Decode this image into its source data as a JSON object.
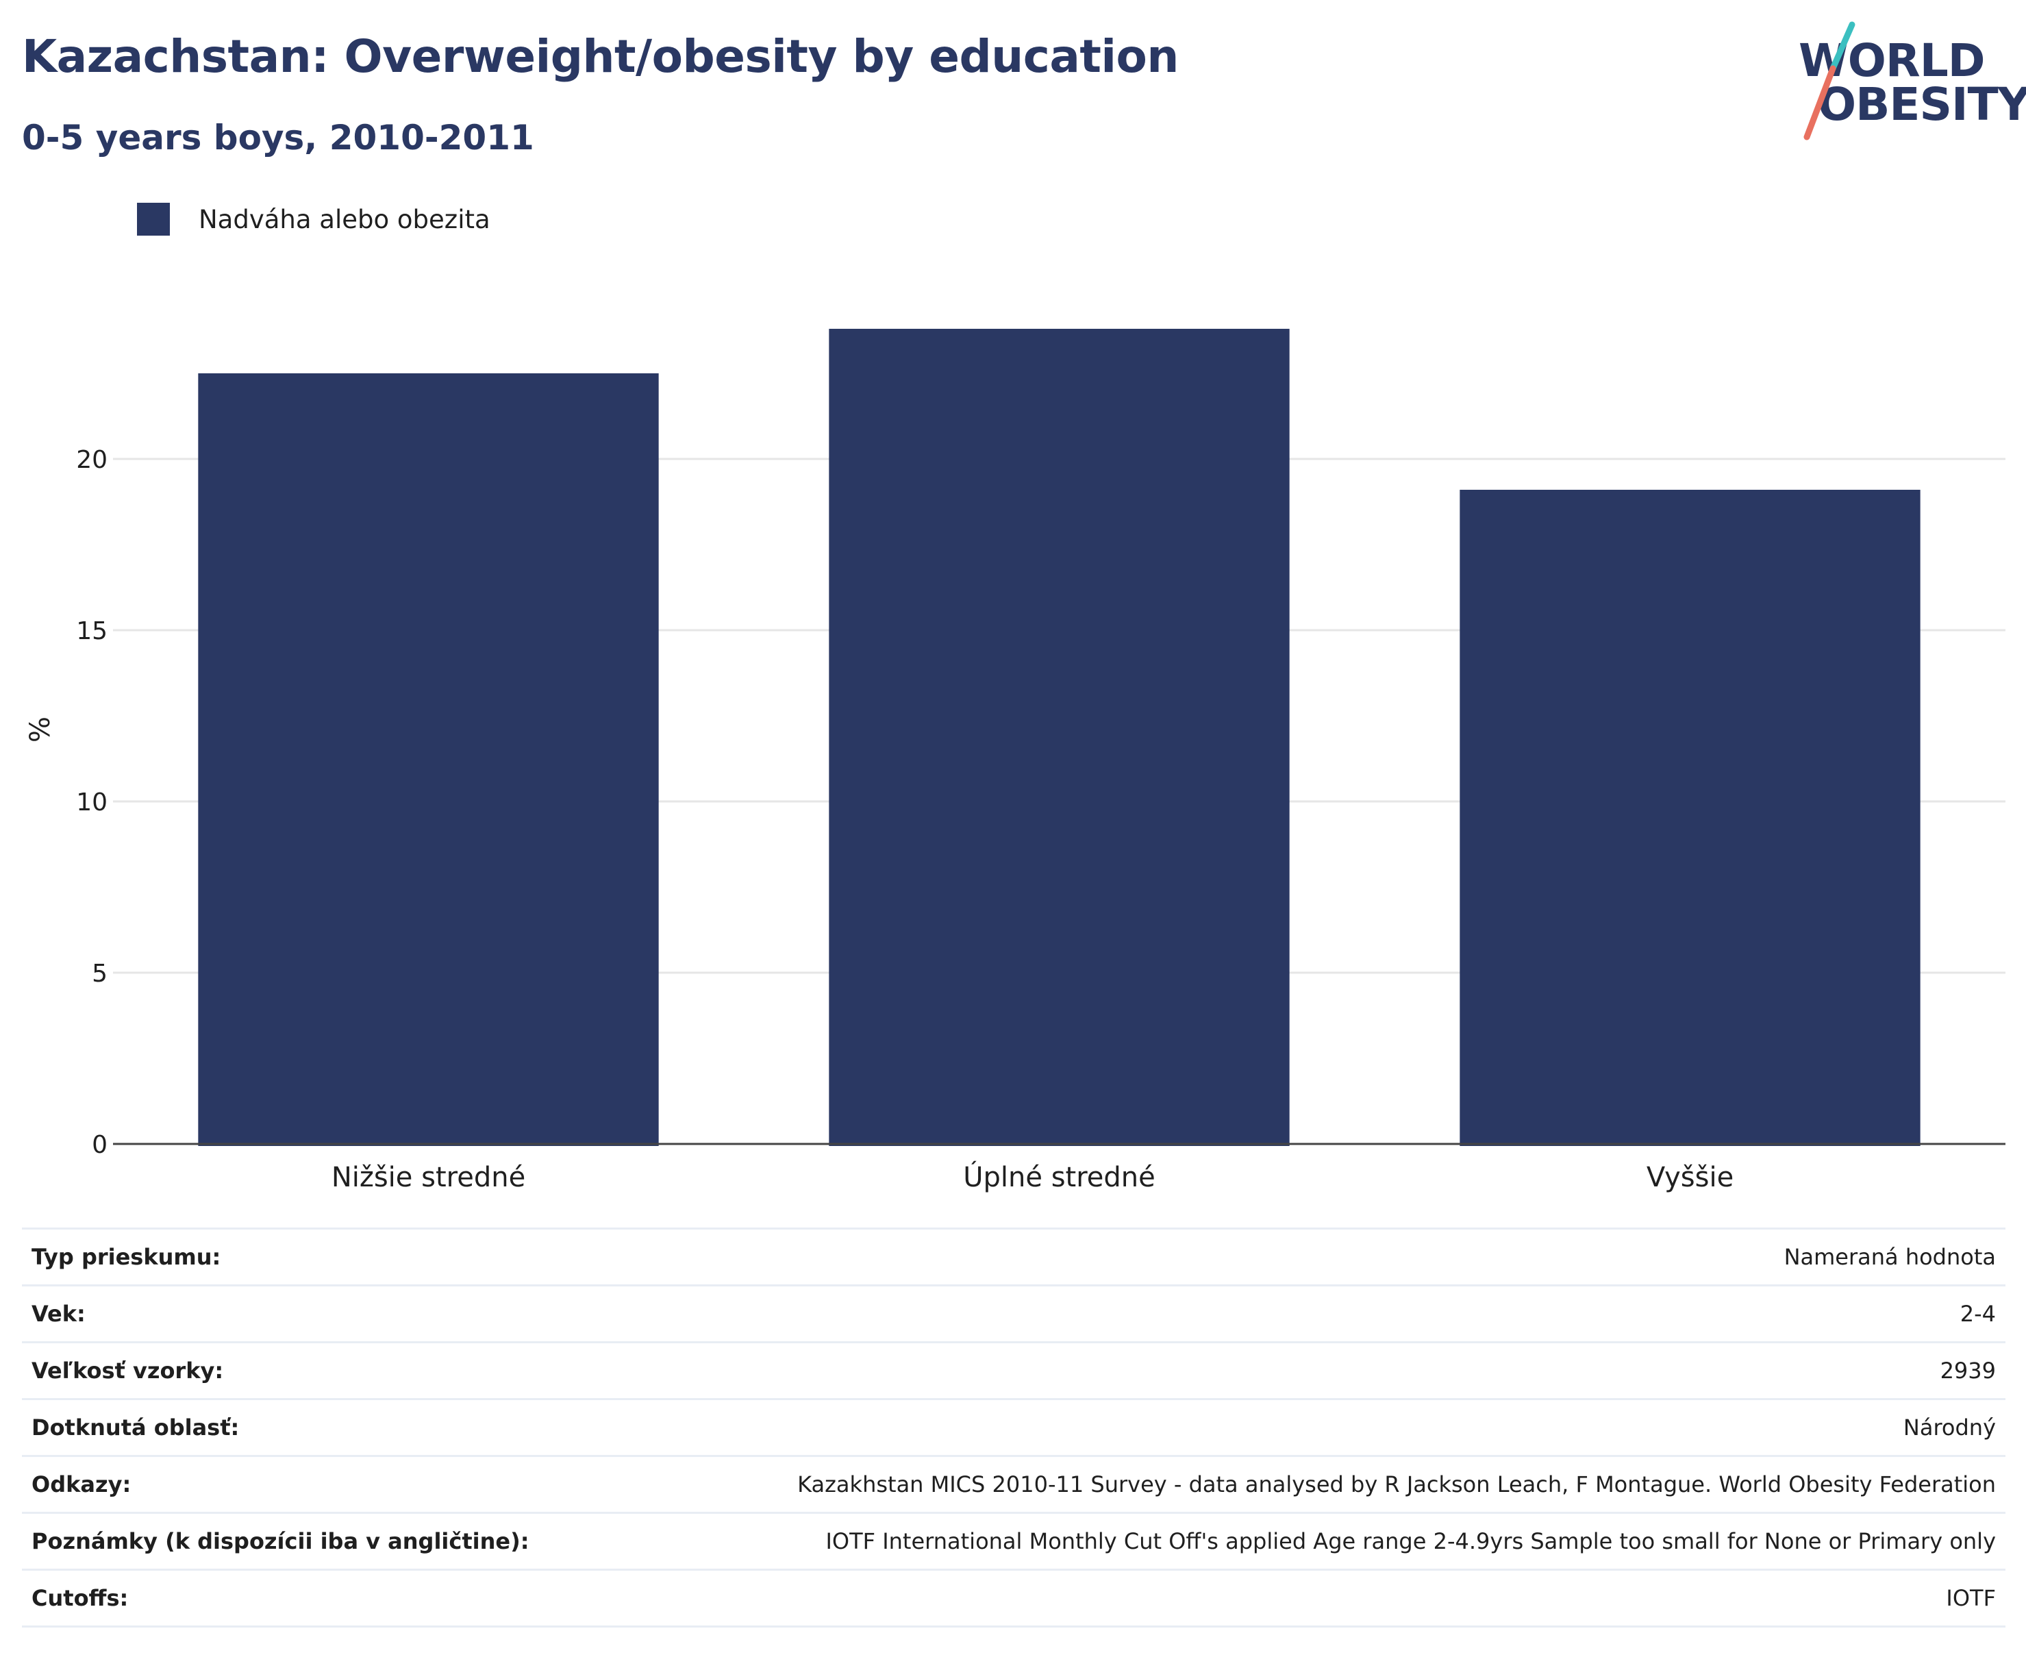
{
  "header": {
    "title": "Kazachstan: Overweight/obesity by education",
    "subtitle": "0-5 years boys, 2010-2011"
  },
  "logo": {
    "line1": "WORLD",
    "line2": "OBESITY",
    "accent_teal": "#3bbfc0",
    "accent_coral": "#e8705f"
  },
  "colors": {
    "bar": "#2a3863",
    "text": "#1f1f1f",
    "grid": "#e6e6e6",
    "axis": "#444444"
  },
  "legend": {
    "label": "Nadváha alebo obezita"
  },
  "chart_data": {
    "type": "bar",
    "categories": [
      "Nižšie stredné",
      "Úplné stredné",
      "Vyššie"
    ],
    "series": [
      {
        "name": "Nadváha alebo obezita",
        "values": [
          22.5,
          23.8,
          19.1
        ]
      }
    ],
    "ylabel": "%",
    "ylim": [
      0,
      25
    ],
    "yticks": [
      0,
      5,
      10,
      15,
      20
    ],
    "grid": true,
    "legend_position": "top-left"
  },
  "info": [
    {
      "label": "Typ prieskumu:",
      "value": "Nameraná hodnota"
    },
    {
      "label": "Vek:",
      "value": "2-4"
    },
    {
      "label": "Veľkosť vzorky:",
      "value": "2939"
    },
    {
      "label": "Dotknutá oblasť:",
      "value": "Národný"
    },
    {
      "label": "Odkazy:",
      "value": "Kazakhstan MICS 2010-11 Survey - data analysed by R Jackson Leach, F Montague. World Obesity Federation"
    },
    {
      "label": "Poznámky (k dispozícii iba v angličtine):",
      "value": "IOTF International Monthly Cut Off's applied Age range 2-4.9yrs Sample too small for None or Primary only"
    },
    {
      "label": "Cutoffs:",
      "value": "IOTF"
    }
  ]
}
